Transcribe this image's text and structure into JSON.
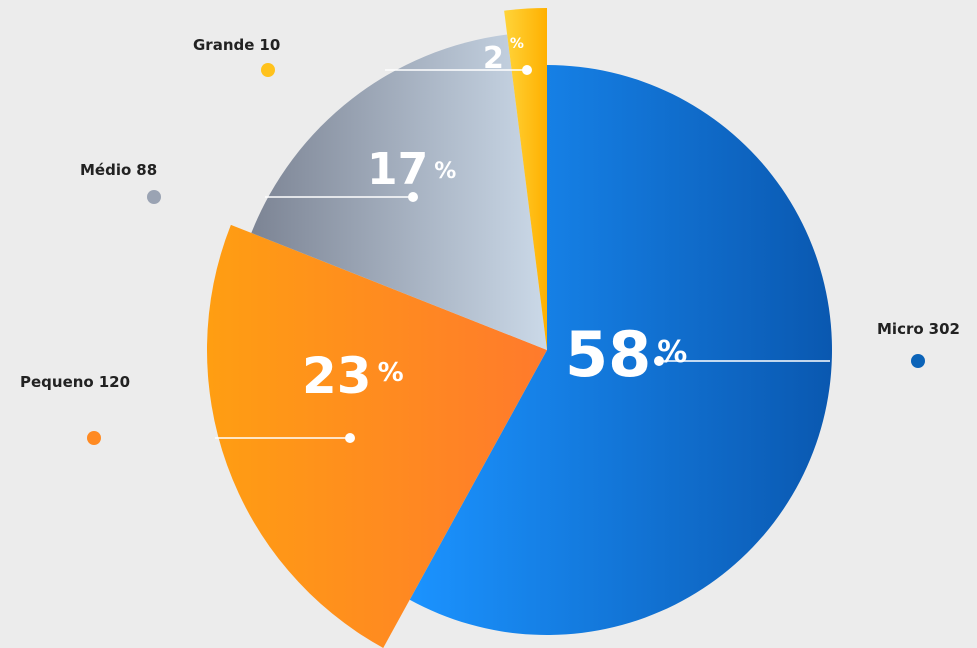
{
  "chart_data": {
    "type": "pie",
    "categories": [
      "Micro",
      "Pequeno",
      "Médio",
      "Grande"
    ],
    "counts": [
      302,
      120,
      88,
      10
    ],
    "values": [
      58,
      23,
      17,
      2
    ],
    "unit": "%",
    "colors": [
      [
        "#1b93ff",
        "#0a58b0"
      ],
      [
        "#ff9e12",
        "#ff7a2c"
      ],
      [
        "#7c8494",
        "#cbd9e8"
      ],
      [
        "#ffd43a",
        "#ffb000"
      ]
    ],
    "marker_colors": [
      "#0b63b8",
      "#ff8a22",
      "#9aa3b3",
      "#ffc21c"
    ]
  }
}
